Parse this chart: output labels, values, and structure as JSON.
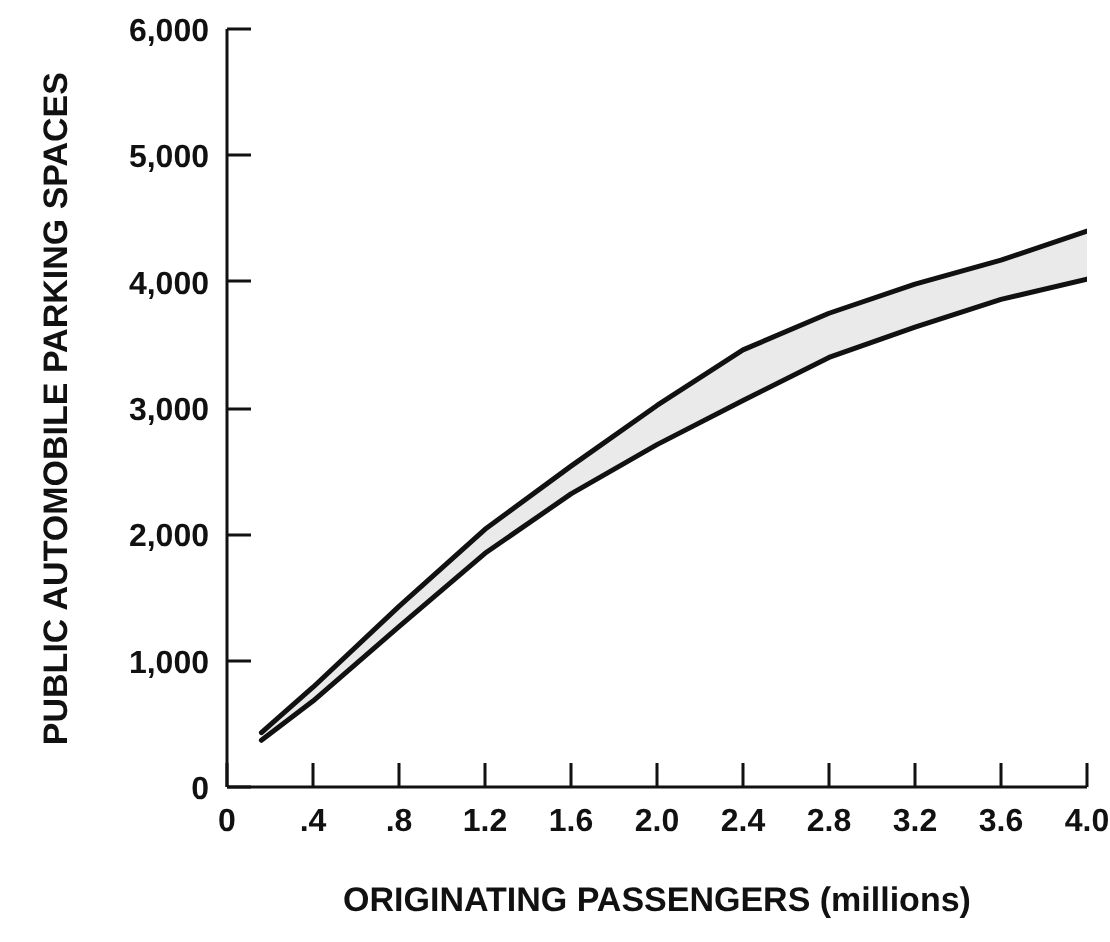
{
  "chart_data": {
    "type": "line",
    "xlabel": "ORIGINATING PASSENGERS (millions)",
    "ylabel": "PUBLIC AUTOMOBILE PARKING SPACES",
    "x": [
      0.16,
      0.4,
      0.8,
      1.2,
      1.6,
      2.0,
      2.4,
      2.8,
      3.2,
      3.6,
      4.0
    ],
    "series": [
      {
        "color": "#111111",
        "values": [
          430,
          790,
          1430,
          2040,
          2540,
          3020,
          3460,
          3750,
          3980,
          4170,
          4400
        ],
        "lower": [
          370,
          680,
          1270,
          1850,
          2320,
          2710,
          3060,
          3400,
          3640,
          3860,
          4020
        ],
        "upper": [
          430,
          790,
          1430,
          2040,
          2540,
          3020,
          3460,
          3750,
          3980,
          4170,
          4400
        ]
      },
      {
        "color": "#111111",
        "values": [
          370,
          680,
          1270,
          1850,
          2320,
          2710,
          3060,
          3400,
          3640,
          3860,
          4020
        ]
      }
    ],
    "line_style": "solid",
    "xlim": [
      0,
      4.0
    ],
    "ylim": [
      0,
      6000
    ],
    "xticks": [
      0,
      {
        "value": 0.4,
        "label": ".4"
      },
      {
        "value": 0.8,
        "label": ".8"
      },
      1.2,
      1.6,
      {
        "value": 2,
        "label": "2.0"
      },
      2.4,
      2.8,
      3.2,
      3.6,
      {
        "value": 4,
        "label": "4.0"
      }
    ],
    "yticks": [
      0,
      {
        "value": 1000,
        "label": "1,000"
      },
      {
        "value": 2000,
        "label": "2,000"
      },
      {
        "value": 3000,
        "label": "3,000"
      },
      {
        "value": 4000,
        "label": "4,000"
      },
      {
        "value": 5000,
        "label": "5,000"
      },
      {
        "value": 6000,
        "label": "6,000"
      }
    ]
  }
}
